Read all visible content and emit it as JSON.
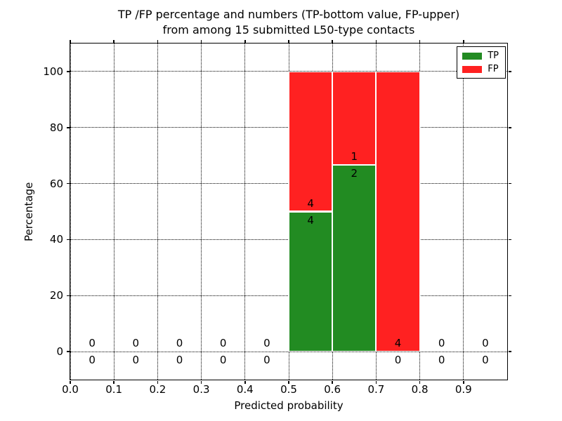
{
  "figure": {
    "title_line1": "TP /FP percentage and numbers (TP-bottom value, FP-upper)",
    "title_line2": "from among 15 submitted L50-type contacts",
    "xlabel": "Predicted probability",
    "ylabel": "Percentage"
  },
  "legend": {
    "items": [
      {
        "label": "TP",
        "color": "#228b22"
      },
      {
        "label": "FP",
        "color": "#ff2121"
      }
    ]
  },
  "chart_data": {
    "type": "bar",
    "subtype": "stacked-percentage-histogram",
    "title": "TP /FP percentage and numbers (TP-bottom value, FP-upper) from among 15 submitted L50-type contacts",
    "xlabel": "Predicted probability",
    "ylabel": "Percentage",
    "total_contacts": 15,
    "xlim": [
      0.0,
      1.0
    ],
    "ylim": [
      -10,
      110
    ],
    "grid": "dotted",
    "legend_position": "upper right",
    "bin_edges": [
      0.0,
      0.1,
      0.2,
      0.3,
      0.4,
      0.5,
      0.6,
      0.7,
      0.8,
      0.9,
      1.0
    ],
    "x_tick_labels": [
      "0.0",
      "0.1",
      "0.2",
      "0.3",
      "0.4",
      "0.5",
      "0.6",
      "0.7",
      "0.8",
      "0.9"
    ],
    "y_ticks": [
      0,
      20,
      40,
      60,
      80,
      100
    ],
    "series": [
      {
        "name": "TP",
        "color": "#228b22",
        "counts": [
          0,
          0,
          0,
          0,
          0,
          4,
          2,
          0,
          0,
          0
        ],
        "pct": [
          0,
          0,
          0,
          0,
          0,
          50,
          66.67,
          0,
          0,
          0
        ]
      },
      {
        "name": "FP",
        "color": "#ff2121",
        "counts": [
          0,
          0,
          0,
          0,
          0,
          4,
          1,
          4,
          0,
          0
        ],
        "pct": [
          0,
          0,
          0,
          0,
          0,
          50,
          33.33,
          100,
          0,
          0
        ]
      }
    ]
  }
}
